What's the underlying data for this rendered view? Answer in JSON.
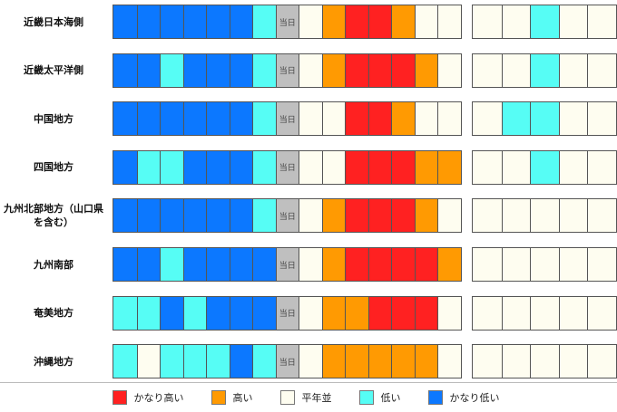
{
  "chart_data": {
    "type": "heatmap",
    "today_label": "当日",
    "today_index": 7,
    "levels": {
      "VH": {
        "label": "かなり高い",
        "color": "#ff2121"
      },
      "H": {
        "label": "高い",
        "color": "#ff9a02"
      },
      "N": {
        "label": "平年並",
        "color": "#fefdf0"
      },
      "L": {
        "label": "低い",
        "color": "#56fdf5"
      },
      "VL": {
        "label": "かなり低い",
        "color": "#0c78ff"
      },
      "T": {
        "label": "当日",
        "color": "#bfbfbf"
      }
    },
    "legend_order": [
      "VH",
      "H",
      "N",
      "L",
      "VL"
    ],
    "rows": [
      {
        "region": [
          "近畿日本海側"
        ],
        "main": [
          "VL",
          "VL",
          "VL",
          "VL",
          "VL",
          "VL",
          "L",
          "T",
          "N",
          "H",
          "VH",
          "VH",
          "H",
          "N",
          "N"
        ],
        "week": [
          "N",
          "N",
          "L",
          "N",
          "N"
        ]
      },
      {
        "region": [
          "近畿太平洋側"
        ],
        "main": [
          "VL",
          "VL",
          "L",
          "VL",
          "VL",
          "VL",
          "L",
          "T",
          "N",
          "H",
          "VH",
          "VH",
          "VH",
          "H",
          "N"
        ],
        "week": [
          "N",
          "N",
          "L",
          "N",
          "N"
        ]
      },
      {
        "region": [
          "中国地方"
        ],
        "main": [
          "VL",
          "VL",
          "VL",
          "VL",
          "VL",
          "VL",
          "L",
          "T",
          "N",
          "N",
          "VH",
          "VH",
          "H",
          "N",
          "N"
        ],
        "week": [
          "N",
          "L",
          "L",
          "N",
          "N"
        ]
      },
      {
        "region": [
          "四国地方"
        ],
        "main": [
          "VL",
          "L",
          "L",
          "VL",
          "VL",
          "VL",
          "L",
          "T",
          "N",
          "N",
          "VH",
          "VH",
          "VH",
          "H",
          "H"
        ],
        "week": [
          "N",
          "N",
          "L",
          "N",
          "N"
        ]
      },
      {
        "region": [
          "九州北部地方（山口県",
          "を含む）"
        ],
        "main": [
          "VL",
          "VL",
          "VL",
          "VL",
          "VL",
          "VL",
          "L",
          "T",
          "N",
          "H",
          "VH",
          "VH",
          "VH",
          "H",
          "N"
        ],
        "week": [
          "N",
          "N",
          "N",
          "N",
          "N"
        ]
      },
      {
        "region": [
          "九州南部"
        ],
        "main": [
          "VL",
          "VL",
          "L",
          "VL",
          "VL",
          "VL",
          "VL",
          "T",
          "N",
          "H",
          "VH",
          "VH",
          "VH",
          "VH",
          "H"
        ],
        "week": [
          "N",
          "N",
          "N",
          "N",
          "N"
        ]
      },
      {
        "region": [
          "奄美地方"
        ],
        "main": [
          "L",
          "L",
          "VL",
          "L",
          "VL",
          "VL",
          "VL",
          "T",
          "N",
          "H",
          "H",
          "VH",
          "VH",
          "VH",
          "N"
        ],
        "week": [
          "N",
          "N",
          "N",
          "N",
          "N"
        ]
      },
      {
        "region": [
          "沖縄地方"
        ],
        "main": [
          "L",
          "N",
          "L",
          "L",
          "L",
          "VL",
          "L",
          "T",
          "N",
          "H",
          "H",
          "H",
          "H",
          "H",
          "N"
        ],
        "week": [
          "N",
          "N",
          "N",
          "N",
          "N"
        ]
      }
    ]
  }
}
